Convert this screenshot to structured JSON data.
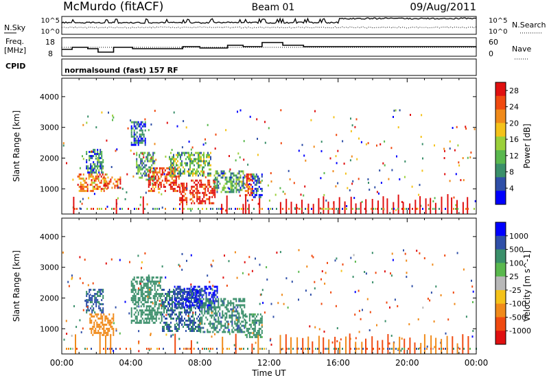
{
  "header": {
    "title": "McMurdo (fitACF)",
    "beam": "Beam 01",
    "date": "09/Aug/2011"
  },
  "noise_panel": {
    "left_label": "N.Sky",
    "right_label": "N.Search",
    "tick_top": "10^5",
    "tick_bottom": "10^0",
    "right_tick_top": "10^5",
    "right_tick_bottom": "10^0"
  },
  "freq_panel": {
    "left_label_1": "Freq.",
    "left_label_2": "[MHz]",
    "right_label": "Nave",
    "left_ticks": [
      "18",
      "8"
    ],
    "right_ticks": [
      "60",
      "0"
    ]
  },
  "cpid": {
    "label": "CPID",
    "mode_text": "normalsound (fast) 157 RF"
  },
  "axes": {
    "ylabel": "Slant Range [km]",
    "xlabel": "Time UT"
  },
  "colors": {
    "power": [
      "#0000ff",
      "#2f4fa8",
      "#3a8f6a",
      "#5ab84e",
      "#9bd03a",
      "#f4c21a",
      "#f08a1a",
      "#f04a10",
      "#e01010"
    ],
    "velocity": [
      "#0000ff",
      "#2f4fa8",
      "#3a8f6a",
      "#5ab84e",
      "#b8b8b8",
      "#f4c21a",
      "#f08a1a",
      "#f04a10",
      "#e01010"
    ]
  },
  "chart_data": [
    {
      "type": "heatmap",
      "title": "Power",
      "quantity": "Power",
      "unit": "dB",
      "xlabel": "Time UT",
      "ylabel": "Slant Range [km]",
      "xlim": [
        0,
        24
      ],
      "ylim": [
        180,
        4600
      ],
      "x_ticks": [
        "00:00",
        "04:00",
        "08:00",
        "12:00",
        "16:00",
        "20:00",
        "00:00"
      ],
      "y_ticks": [
        1000,
        2000,
        3000,
        4000
      ],
      "colorbar_label": "Power [dB]",
      "colorbar_ticks": [
        "4",
        "8",
        "12",
        "16",
        "20",
        "24",
        "28"
      ],
      "colorbar_range": [
        0,
        30
      ],
      "regions": [
        {
          "t": [
            0.9,
            2.6
          ],
          "r": [
            900,
            1500
          ],
          "level": 22
        },
        {
          "t": [
            1.4,
            2.4
          ],
          "r": [
            1500,
            2300
          ],
          "level": 8
        },
        {
          "t": [
            2.4,
            3.4
          ],
          "r": [
            1000,
            1400
          ],
          "level": 24
        },
        {
          "t": [
            4.0,
            4.8
          ],
          "r": [
            2400,
            3200
          ],
          "level": 6
        },
        {
          "t": [
            4.3,
            5.4
          ],
          "r": [
            1300,
            2200
          ],
          "level": 10
        },
        {
          "t": [
            5.0,
            6.8
          ],
          "r": [
            900,
            1700
          ],
          "level": 26
        },
        {
          "t": [
            6.2,
            8.6
          ],
          "r": [
            1400,
            2200
          ],
          "level": 12
        },
        {
          "t": [
            6.8,
            7.2
          ],
          "r": [
            500,
            1200
          ],
          "level": 27
        },
        {
          "t": [
            7.4,
            8.9
          ],
          "r": [
            500,
            1300
          ],
          "level": 28
        },
        {
          "t": [
            8.8,
            10.6
          ],
          "r": [
            900,
            1600
          ],
          "level": 10
        },
        {
          "t": [
            10.6,
            11.0
          ],
          "r": [
            800,
            1500
          ],
          "level": 26
        },
        {
          "t": [
            11.0,
            11.6
          ],
          "r": [
            700,
            1500
          ],
          "level": 6
        }
      ]
    },
    {
      "type": "heatmap",
      "title": "Velocity",
      "quantity": "Velocity",
      "unit": "m s^-1",
      "xlabel": "Time UT",
      "ylabel": "Slant Range [km]",
      "xlim": [
        0,
        24
      ],
      "ylim": [
        180,
        4600
      ],
      "x_ticks": [
        "00:00",
        "04:00",
        "08:00",
        "12:00",
        "16:00",
        "20:00",
        "00:00"
      ],
      "y_ticks": [
        1000,
        2000,
        3000,
        4000
      ],
      "colorbar_label": "Velocity [m s^-1]",
      "colorbar_ticks": [
        "1000",
        "500",
        "100",
        "25",
        "-25",
        "-100",
        "-500",
        "-1000"
      ],
      "regions": [
        {
          "t": [
            1.6,
            3.0
          ],
          "r": [
            800,
            1500
          ],
          "level": -300
        },
        {
          "t": [
            1.4,
            2.4
          ],
          "r": [
            1500,
            2300
          ],
          "level": 600
        },
        {
          "t": [
            4.0,
            5.8
          ],
          "r": [
            1200,
            2700
          ],
          "level": 300
        },
        {
          "t": [
            5.8,
            8.0
          ],
          "r": [
            900,
            2300
          ],
          "level": 600
        },
        {
          "t": [
            6.5,
            9.0
          ],
          "r": [
            1700,
            2400
          ],
          "level": 1100
        },
        {
          "t": [
            8.0,
            10.6
          ],
          "r": [
            900,
            2000
          ],
          "level": 350
        },
        {
          "t": [
            10.6,
            11.6
          ],
          "r": [
            700,
            1500
          ],
          "level": 200
        }
      ]
    }
  ]
}
